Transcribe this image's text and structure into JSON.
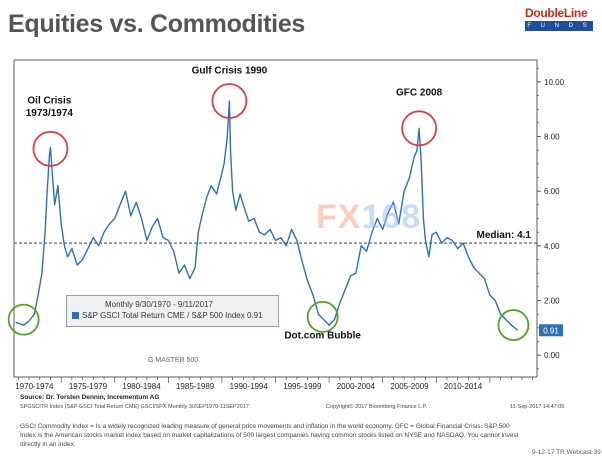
{
  "title": "Equities vs. Commodities",
  "logo": {
    "brand": "DoubleLine",
    "sub": "F U N D S",
    "icon": "doubleline-logo"
  },
  "watermark": {
    "part1": "FX",
    "part2": "168"
  },
  "legend": {
    "line1": "Monthly 9/30/1970 - 9/11/2017",
    "line2": "S&P GSCI Total Return CME / S&P 500 Index 0.91",
    "swatch_color": "#2f6fb6"
  },
  "gmaster": "G MASTER 500",
  "source": "Source: Dr. Torsten Dennin, Incrementum AG",
  "ticker_line": "SPGSCITR Index (S&P GSCI Total Return CME) GSCI/SPX  Monthly 30SEP1970-11SEP2017",
  "copyright": "Copyright© 2017 Bloomberg Finance L.P.",
  "timestamp": "11-Sep-2017 14:47:05",
  "footnote": "GSCI Commodity Index = Is a widely recognized leading measure of general price movements and inflation in the world economy. GFC = Global Financial Crisis. S&P 500 Index is the American stocks market index based on market capitalizations of 500 largest companies having common stocks listed on NYSE and NASDAQ. You cannot invest directly in an index.",
  "webcast": "9-12-17 TR Webcast",
  "page_number": "39",
  "chart_data": {
    "type": "line",
    "title": "Equities vs. Commodities",
    "xlabel": "",
    "ylabel": "",
    "x_tick_labels": [
      "1970-1974",
      "1975-1979",
      "1980-1984",
      "1985-1989",
      "1990-1994",
      "1995-1999",
      "2000-2004",
      "2005-2009",
      "2010-2014"
    ],
    "y_ticks": [
      0,
      2,
      4,
      6,
      8,
      10
    ],
    "y_tick_labels": [
      "0.00",
      "2.00",
      "4.00",
      "6.00",
      "8.00",
      "10.00"
    ],
    "ylim": [
      -0.8,
      10.8
    ],
    "xlim": [
      1970.6,
      2019.4
    ],
    "grid": false,
    "axis_side": "right",
    "colors": {
      "line": "#2f6fb6",
      "red_circle": "#e03c44",
      "green_circle": "#5a9e2a",
      "median_line": "#222222",
      "last_value_box": "#2f6fb6"
    },
    "median": {
      "label": "Median: 4.1",
      "value": 4.1
    },
    "last_value": {
      "label": "0.91",
      "value": 0.91
    },
    "series": [
      {
        "x": [
          1970.75,
          1971.5,
          1972.0,
          1972.5,
          1972.9,
          1973.2,
          1973.5,
          1973.7,
          1973.9,
          1974.0,
          1974.2,
          1974.4,
          1974.7,
          1975.0,
          1975.3,
          1975.6,
          1976.0,
          1976.5,
          1977.0,
          1977.5,
          1978.0,
          1978.5,
          1979.0,
          1979.5,
          1980.0,
          1980.5,
          1981.0,
          1981.5,
          1982.0,
          1982.5,
          1983.0,
          1983.5,
          1984.0,
          1984.5,
          1985.0,
          1985.5,
          1986.0,
          1986.5,
          1987.0,
          1987.5,
          1987.8,
          1988.2,
          1988.6,
          1989.0,
          1989.5,
          1989.9,
          1990.2,
          1990.5,
          1990.7,
          1990.8,
          1991.0,
          1991.3,
          1991.7,
          1992.0,
          1992.5,
          1993.0,
          1993.5,
          1994.0,
          1994.5,
          1995.0,
          1995.5,
          1996.0,
          1996.5,
          1997.0,
          1997.5,
          1998.0,
          1998.5,
          1999.0,
          1999.5,
          2000.0,
          2000.5,
          2001.0,
          2001.5,
          2002.0,
          2002.5,
          2003.0,
          2003.5,
          2004.0,
          2004.5,
          2005.0,
          2005.5,
          2006.0,
          2006.5,
          2007.0,
          2007.5,
          2007.9,
          2008.2,
          2008.4,
          2008.6,
          2008.8,
          2009.0,
          2009.3,
          2009.6,
          2010.0,
          2010.5,
          2011.0,
          2011.5,
          2012.0,
          2012.5,
          2013.0,
          2013.5,
          2014.0,
          2014.5,
          2015.0,
          2015.5,
          2016.0,
          2016.5,
          2017.0,
          2017.6
        ],
        "y": [
          1.2,
          1.1,
          1.25,
          1.5,
          2.3,
          3.0,
          4.5,
          6.0,
          7.3,
          7.6,
          6.5,
          5.5,
          6.2,
          4.8,
          4.0,
          3.6,
          3.9,
          3.3,
          3.5,
          3.9,
          4.3,
          4.0,
          4.5,
          4.8,
          5.0,
          5.5,
          6.0,
          5.1,
          5.6,
          5.0,
          4.2,
          4.7,
          5.0,
          4.3,
          4.2,
          3.8,
          3.0,
          3.3,
          2.8,
          3.2,
          4.5,
          5.2,
          5.8,
          6.2,
          5.9,
          6.5,
          7.0,
          8.0,
          9.3,
          7.5,
          6.0,
          5.3,
          5.9,
          5.5,
          4.9,
          5.0,
          4.5,
          4.4,
          4.6,
          4.2,
          4.3,
          4.0,
          4.6,
          4.2,
          3.4,
          2.7,
          2.2,
          1.5,
          1.3,
          1.1,
          1.3,
          1.9,
          2.4,
          2.9,
          3.0,
          4.0,
          3.8,
          4.5,
          5.0,
          4.6,
          5.2,
          5.6,
          4.8,
          6.0,
          6.5,
          7.2,
          7.5,
          8.3,
          7.0,
          5.0,
          4.2,
          3.6,
          4.4,
          4.5,
          4.1,
          4.3,
          4.2,
          3.9,
          4.1,
          3.6,
          3.2,
          3.0,
          2.8,
          2.2,
          2.0,
          1.5,
          1.3,
          1.1,
          0.91
        ]
      }
    ],
    "annotations": [
      {
        "text": "Oil Crisis",
        "x": 1973.9,
        "y": 9.2,
        "anchor": "middle"
      },
      {
        "text": "1973/1974",
        "x": 1973.9,
        "y": 8.75,
        "anchor": "middle"
      },
      {
        "text": "Gulf Crisis 1990",
        "x": 1990.7,
        "y": 10.3,
        "anchor": "middle"
      },
      {
        "text": "GFC 2008",
        "x": 2008.4,
        "y": 9.5,
        "anchor": "middle"
      },
      {
        "text": "Dot.com Bubble",
        "x": 1999.4,
        "y": 0.6,
        "anchor": "middle"
      }
    ],
    "circles": [
      {
        "name": "oil-crisis-circle",
        "x": 1974.0,
        "y": 7.55,
        "kind": "red"
      },
      {
        "name": "gulf-crisis-circle",
        "x": 1990.7,
        "y": 9.3,
        "kind": "red"
      },
      {
        "name": "gfc-circle",
        "x": 2008.4,
        "y": 8.3,
        "kind": "red"
      },
      {
        "name": "start-low-circle",
        "x": 1971.5,
        "y": 1.3,
        "kind": "green"
      },
      {
        "name": "dotcom-low-circle",
        "x": 1999.4,
        "y": 1.4,
        "kind": "green"
      },
      {
        "name": "current-low-circle",
        "x": 2017.2,
        "y": 1.1,
        "kind": "green"
      }
    ]
  }
}
